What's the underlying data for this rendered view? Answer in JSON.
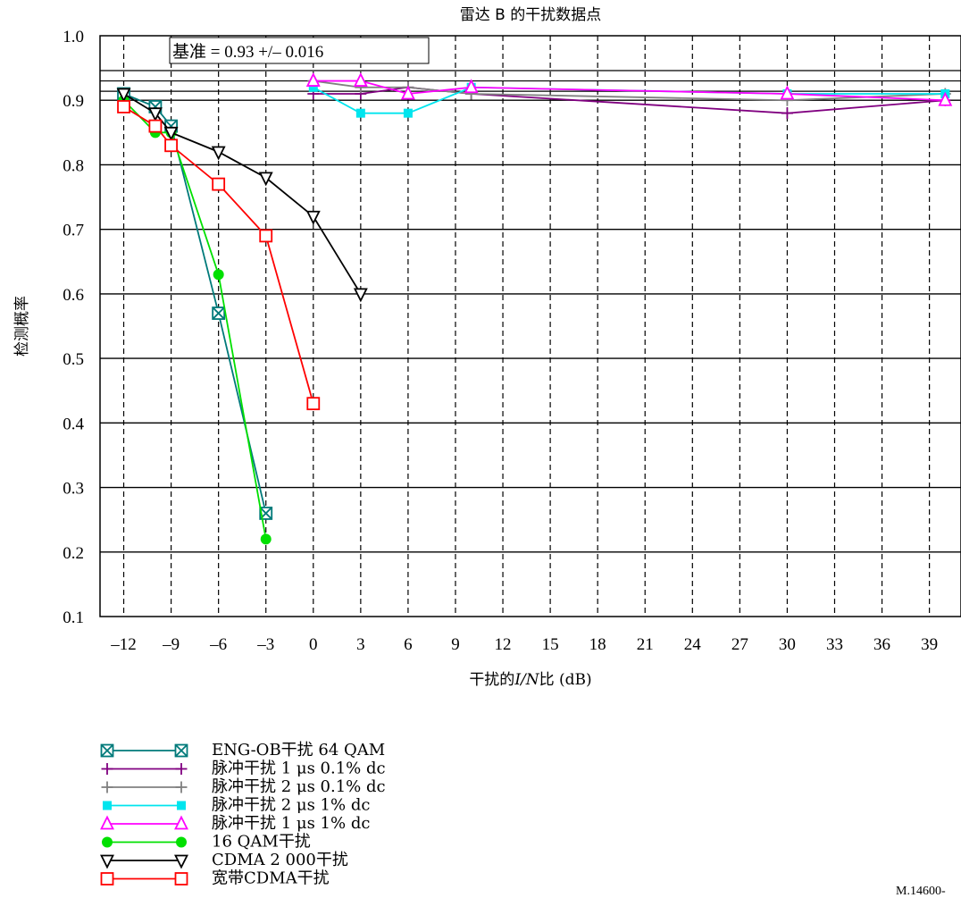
{
  "chart_data": {
    "type": "line",
    "title": "雷达 B 的干扰数据点",
    "xlabel_prefix": "干扰的",
    "xlabel_var": "I/N",
    "xlabel_suffix": "比 (dB)",
    "ylabel": "检测概率",
    "xlim": [
      -13.5,
      41
    ],
    "ylim": [
      0.1,
      1.0
    ],
    "xticks": [
      -12,
      -9,
      -6,
      -3,
      0,
      3,
      6,
      9,
      12,
      15,
      18,
      21,
      24,
      27,
      30,
      33,
      36,
      39
    ],
    "xtick_labels": [
      "–12",
      "–9",
      "–6",
      "–3",
      "0",
      "3",
      "6",
      "9",
      "12",
      "15",
      "18",
      "21",
      "24",
      "27",
      "30",
      "33",
      "36",
      "39"
    ],
    "yticks": [
      0.1,
      0.2,
      0.3,
      0.4,
      0.5,
      0.6,
      0.7,
      0.8,
      0.9,
      1.0
    ],
    "ytick_labels": [
      "0.1",
      "0.2",
      "0.3",
      "0.4",
      "0.5",
      "0.6",
      "0.7",
      "0.8",
      "0.9",
      "1.0"
    ],
    "baseline_label": "基准 = 0.93 +/– 0.016",
    "baseline": {
      "center": 0.93,
      "tolerance": 0.016
    },
    "grid": true,
    "legend_position": "bottom-left",
    "series": [
      {
        "name": "ENG-OB干扰 64 QAM",
        "color": "#007a7a",
        "marker": "boxx",
        "points": [
          [
            -12,
            0.91
          ],
          [
            -10,
            0.89
          ],
          [
            -9,
            0.86
          ],
          [
            -6,
            0.57
          ],
          [
            -3,
            0.26
          ]
        ]
      },
      {
        "name": "脉冲干扰 1 μs 0.1% dc",
        "color": "#800080",
        "marker": "plus",
        "points": [
          [
            0,
            0.91
          ],
          [
            3,
            0.91
          ],
          [
            6,
            0.92
          ],
          [
            10,
            0.91
          ],
          [
            30,
            0.88
          ],
          [
            40,
            0.9
          ]
        ]
      },
      {
        "name": "脉冲干扰 2 μs 0.1% dc",
        "color": "#808080",
        "marker": "plus",
        "points": [
          [
            0,
            0.93
          ],
          [
            3,
            0.92
          ],
          [
            6,
            0.92
          ],
          [
            10,
            0.91
          ],
          [
            30,
            0.9
          ],
          [
            40,
            0.91
          ]
        ]
      },
      {
        "name": "脉冲干扰 2 μs 1% dc",
        "color": "#00e5ee",
        "marker": "square",
        "points": [
          [
            0,
            0.92
          ],
          [
            3,
            0.88
          ],
          [
            6,
            0.88
          ],
          [
            10,
            0.92
          ],
          [
            30,
            0.91
          ],
          [
            40,
            0.91
          ]
        ]
      },
      {
        "name": "脉冲干扰 1 μs 1% dc",
        "color": "#ff00ff",
        "marker": "triangle",
        "points": [
          [
            0,
            0.93
          ],
          [
            3,
            0.93
          ],
          [
            6,
            0.91
          ],
          [
            10,
            0.92
          ],
          [
            30,
            0.91
          ],
          [
            40,
            0.9
          ]
        ]
      },
      {
        "name": "16 QAM干扰",
        "color": "#00e000",
        "marker": "circle",
        "points": [
          [
            -12,
            0.9
          ],
          [
            -10,
            0.85
          ],
          [
            -9,
            0.85
          ],
          [
            -6,
            0.63
          ],
          [
            -3,
            0.22
          ]
        ]
      },
      {
        "name": "CDMA 2 000干扰",
        "color": "#000000",
        "marker": "invtriangle",
        "points": [
          [
            -12,
            0.91
          ],
          [
            -10,
            0.88
          ],
          [
            -9,
            0.85
          ],
          [
            -6,
            0.82
          ],
          [
            -3,
            0.78
          ],
          [
            0,
            0.72
          ],
          [
            3,
            0.6
          ]
        ]
      },
      {
        "name": "宽带CDMA干扰",
        "color": "#ff0000",
        "marker": "opensquare",
        "points": [
          [
            -12,
            0.89
          ],
          [
            -10,
            0.86
          ],
          [
            -9,
            0.83
          ],
          [
            -6,
            0.77
          ],
          [
            -3,
            0.69
          ],
          [
            0,
            0.43
          ]
        ]
      }
    ]
  },
  "figure_id": "M.14600-"
}
